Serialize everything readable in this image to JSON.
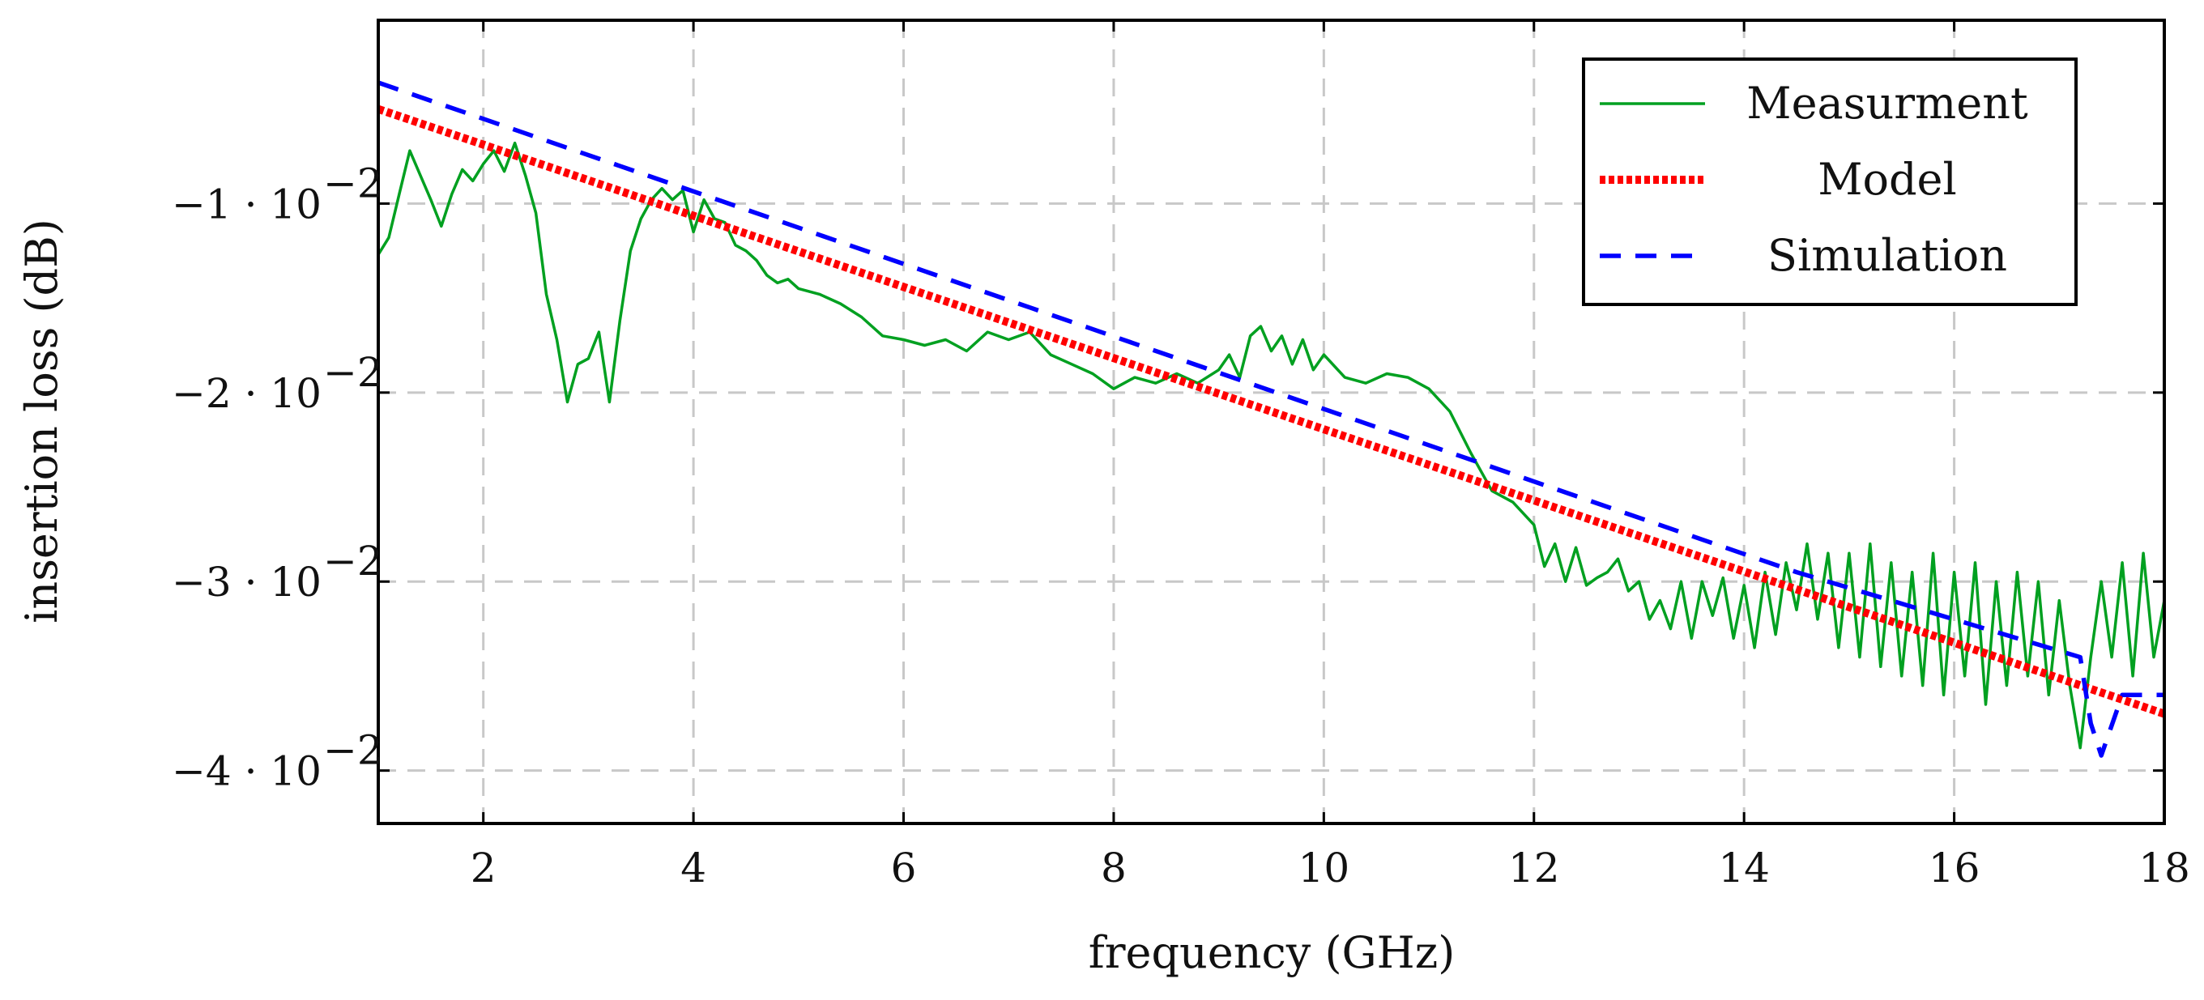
{
  "chart_data": {
    "type": "line",
    "xlabel": "frequency (GHz)",
    "ylabel": "insertion loss (dB)",
    "xlim": [
      1,
      18
    ],
    "ylim": [
      -0.0428,
      -0.0003
    ],
    "grid": true,
    "legend_position": "top-right",
    "x_ticks": [
      2,
      4,
      6,
      8,
      10,
      12,
      14,
      16,
      18
    ],
    "x_tick_labels": [
      "2",
      "4",
      "6",
      "8",
      "10",
      "12",
      "14",
      "16",
      "18"
    ],
    "y_ticks": [
      -0.01,
      -0.02,
      -0.03,
      -0.04
    ],
    "y_tick_labels": [
      "−1 · 10",
      "−2 · 10",
      "−3 · 10",
      "−4 · 10"
    ],
    "y_tick_exponent": "−2",
    "series": [
      {
        "name": "Measurment",
        "color": "#00a020",
        "style": "solid",
        "x": [
          1.0,
          1.1,
          1.2,
          1.3,
          1.4,
          1.5,
          1.6,
          1.7,
          1.8,
          1.9,
          2.0,
          2.1,
          2.2,
          2.3,
          2.4,
          2.5,
          2.6,
          2.7,
          2.8,
          2.9,
          3.0,
          3.1,
          3.2,
          3.3,
          3.4,
          3.5,
          3.6,
          3.7,
          3.8,
          3.9,
          4.0,
          4.1,
          4.2,
          4.3,
          4.4,
          4.5,
          4.6,
          4.7,
          4.8,
          4.9,
          5.0,
          5.2,
          5.4,
          5.6,
          5.8,
          6.0,
          6.2,
          6.4,
          6.6,
          6.8,
          7.0,
          7.2,
          7.4,
          7.6,
          7.8,
          8.0,
          8.2,
          8.4,
          8.6,
          8.8,
          9.0,
          9.1,
          9.2,
          9.3,
          9.4,
          9.5,
          9.6,
          9.7,
          9.8,
          9.9,
          10.0,
          10.2,
          10.4,
          10.6,
          10.8,
          11.0,
          11.2,
          11.4,
          11.6,
          11.8,
          12.0,
          12.1,
          12.2,
          12.3,
          12.4,
          12.5,
          12.6,
          12.7,
          12.8,
          12.9,
          13.0,
          13.1,
          13.2,
          13.3,
          13.4,
          13.5,
          13.6,
          13.7,
          13.8,
          13.9,
          14.0,
          14.1,
          14.2,
          14.3,
          14.4,
          14.5,
          14.6,
          14.7,
          14.8,
          14.9,
          15.0,
          15.1,
          15.2,
          15.3,
          15.4,
          15.5,
          15.6,
          15.7,
          15.8,
          15.9,
          16.0,
          16.1,
          16.2,
          16.3,
          16.4,
          16.5,
          16.6,
          16.7,
          16.8,
          16.9,
          17.0,
          17.1,
          17.2,
          17.3,
          17.4,
          17.5,
          17.6,
          17.7,
          17.8,
          17.9,
          18.0
        ],
        "y": [
          -0.0127,
          -0.0118,
          -0.0095,
          -0.0072,
          -0.0085,
          -0.0098,
          -0.0112,
          -0.0095,
          -0.0082,
          -0.0088,
          -0.0079,
          -0.0072,
          -0.0083,
          -0.0068,
          -0.0085,
          -0.0105,
          -0.0148,
          -0.0172,
          -0.0205,
          -0.0185,
          -0.0182,
          -0.0168,
          -0.0205,
          -0.0162,
          -0.0125,
          -0.0108,
          -0.0098,
          -0.0092,
          -0.0098,
          -0.0093,
          -0.0115,
          -0.0098,
          -0.0108,
          -0.011,
          -0.0122,
          -0.0125,
          -0.013,
          -0.0138,
          -0.0142,
          -0.014,
          -0.0145,
          -0.0148,
          -0.0153,
          -0.016,
          -0.017,
          -0.0172,
          -0.0175,
          -0.0172,
          -0.0178,
          -0.0168,
          -0.0172,
          -0.0168,
          -0.018,
          -0.0185,
          -0.019,
          -0.0198,
          -0.0192,
          -0.0195,
          -0.019,
          -0.0195,
          -0.0188,
          -0.018,
          -0.0192,
          -0.017,
          -0.0165,
          -0.0178,
          -0.017,
          -0.0185,
          -0.0172,
          -0.0188,
          -0.018,
          -0.0192,
          -0.0195,
          -0.019,
          -0.0192,
          -0.0198,
          -0.021,
          -0.0232,
          -0.0252,
          -0.0258,
          -0.027,
          -0.0292,
          -0.028,
          -0.03,
          -0.0282,
          -0.0302,
          -0.0298,
          -0.0295,
          -0.0288,
          -0.0305,
          -0.03,
          -0.032,
          -0.031,
          -0.0325,
          -0.03,
          -0.033,
          -0.03,
          -0.0318,
          -0.0298,
          -0.033,
          -0.0302,
          -0.0335,
          -0.0295,
          -0.0328,
          -0.029,
          -0.0315,
          -0.028,
          -0.032,
          -0.0285,
          -0.0335,
          -0.0285,
          -0.034,
          -0.028,
          -0.0345,
          -0.029,
          -0.035,
          -0.0295,
          -0.0355,
          -0.0285,
          -0.036,
          -0.0295,
          -0.035,
          -0.029,
          -0.0365,
          -0.03,
          -0.0355,
          -0.0295,
          -0.035,
          -0.03,
          -0.036,
          -0.031,
          -0.0355,
          -0.0388,
          -0.034,
          -0.03,
          -0.034,
          -0.029,
          -0.035,
          -0.0285,
          -0.034,
          -0.031
        ]
      },
      {
        "name": "Model",
        "color": "#ff0000",
        "style": "dotted",
        "x": [
          1,
          18
        ],
        "y": [
          -0.005,
          -0.037
        ]
      },
      {
        "name": "Simulation",
        "color": "#0000ff",
        "style": "dashed",
        "x": [
          1,
          14.5,
          17.2,
          17.3,
          17.4,
          17.6,
          18
        ],
        "y": [
          -0.0036,
          -0.0295,
          -0.034,
          -0.0375,
          -0.0392,
          -0.036,
          -0.036
        ]
      }
    ]
  }
}
